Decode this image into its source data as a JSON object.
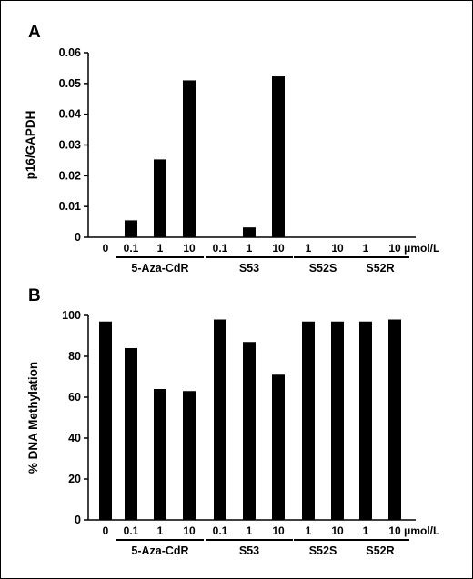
{
  "chart_data": [
    {
      "type": "bar",
      "panel_letter": "A",
      "ylabel": "p16/GAPDH",
      "ylim": [
        0,
        0.06
      ],
      "yticks": [
        "0",
        "0.01",
        "0.02",
        "0.03",
        "0.04",
        "0.05",
        "0.06"
      ],
      "categories": [
        "0",
        "0.1",
        "1",
        "10",
        "0.1",
        "1",
        "10",
        "1",
        "10",
        "1",
        "10"
      ],
      "values": [
        0,
        0.0055,
        0.0253,
        0.051,
        0,
        0.0032,
        0.0523,
        0,
        0,
        0,
        0
      ],
      "unit_label": "μmol/L",
      "groups": [
        {
          "label": "5-Aza-CdR",
          "from": 1,
          "to": 3
        },
        {
          "label": "S53",
          "from": 4,
          "to": 6
        },
        {
          "label": "S52S",
          "from": 7,
          "to": 8
        },
        {
          "label": "S52R",
          "from": 9,
          "to": 10
        }
      ],
      "grid": false
    },
    {
      "type": "bar",
      "panel_letter": "B",
      "ylabel": "% DNA Methylation",
      "ylim": [
        0,
        100
      ],
      "yticks": [
        "0",
        "20",
        "40",
        "60",
        "80",
        "100"
      ],
      "categories": [
        "0",
        "0.1",
        "1",
        "10",
        "0.1",
        "1",
        "10",
        "1",
        "10",
        "1",
        "10"
      ],
      "values": [
        97,
        84,
        64,
        63,
        98,
        87,
        71,
        97,
        97,
        97,
        98
      ],
      "unit_label": "μmol/L",
      "groups": [
        {
          "label": "5-Aza-CdR",
          "from": 1,
          "to": 3
        },
        {
          "label": "S53",
          "from": 4,
          "to": 6
        },
        {
          "label": "S52S",
          "from": 7,
          "to": 8
        },
        {
          "label": "S52R",
          "from": 9,
          "to": 10
        }
      ],
      "grid": false
    }
  ]
}
